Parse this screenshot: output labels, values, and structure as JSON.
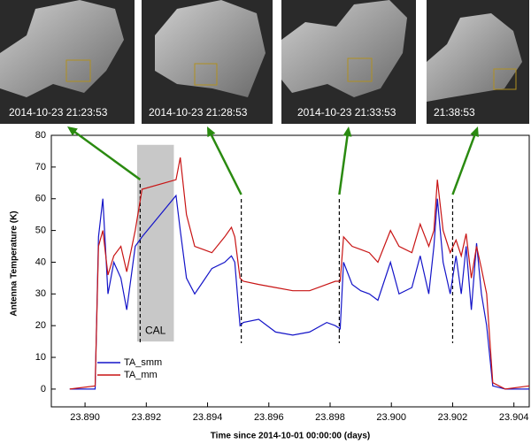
{
  "chart_data": {
    "type": "line",
    "xlabel": "Time since 2014-10-01 00:00:00 (days)",
    "ylabel": "Antenna Temperature (K)",
    "x": [
      23.8895,
      23.89033,
      23.89044,
      23.89058,
      23.89075,
      23.89094,
      23.89117,
      23.89136,
      23.89164,
      23.89186,
      23.89297,
      23.89311,
      23.89331,
      23.89358,
      23.89386,
      23.89414,
      23.89456,
      23.89478,
      23.89489,
      23.89506,
      23.89517,
      23.89567,
      23.89622,
      23.89678,
      23.89733,
      23.89789,
      23.89817,
      23.89833,
      23.89844,
      23.89872,
      23.899,
      23.89928,
      23.89956,
      23.89997,
      23.90025,
      23.90067,
      23.90094,
      23.90122,
      23.90139,
      23.9015,
      23.90169,
      23.90192,
      23.90211,
      23.90228,
      23.90244,
      23.90261,
      23.90278,
      23.90294,
      23.90311,
      23.90331,
      23.90372,
      23.9045
    ],
    "series": [
      {
        "name": "TA_smm",
        "color": "#1414c8",
        "values": [
          0,
          0,
          48,
          60,
          30,
          40,
          35,
          25,
          45,
          48,
          61,
          50,
          35,
          30,
          34,
          38,
          40,
          42,
          40,
          20,
          21,
          22,
          18,
          17,
          18,
          21,
          20,
          19,
          40,
          33,
          31,
          30,
          28,
          40,
          30,
          32,
          42,
          30,
          45,
          60,
          40,
          30,
          42,
          30,
          45,
          25,
          46,
          30,
          20,
          1,
          0,
          0
        ]
      },
      {
        "name": "TA_mm",
        "color": "#c81414",
        "values": [
          0,
          1,
          45,
          50,
          36,
          42,
          45,
          37,
          50,
          63,
          66,
          73,
          55,
          45,
          44,
          43,
          48,
          51,
          48,
          35,
          34,
          33,
          32,
          31,
          31,
          33,
          34,
          34,
          48,
          45,
          44,
          43,
          40,
          50,
          45,
          43,
          52,
          45,
          50,
          66,
          50,
          43,
          47,
          42,
          49,
          35,
          45,
          38,
          30,
          2,
          0,
          1
        ]
      }
    ],
    "xlim": [
      23.8889,
      23.9045
    ],
    "ylim": [
      -5.6,
      80
    ],
    "xticks": [
      {
        "value": 23.89,
        "label": "23.890"
      },
      {
        "value": 23.892,
        "label": "23.892"
      },
      {
        "value": 23.894,
        "label": "23.894"
      },
      {
        "value": 23.896,
        "label": "23.896"
      },
      {
        "value": 23.898,
        "label": "23.898"
      },
      {
        "value": 23.9,
        "label": "23.900"
      },
      {
        "value": 23.902,
        "label": "23.902"
      },
      {
        "value": 23.904,
        "label": "23.904"
      }
    ],
    "yticks": [
      0,
      10,
      20,
      30,
      40,
      50,
      60,
      70,
      80
    ],
    "legend": "lower left",
    "cal_band": {
      "label": "CAL",
      "x": [
        23.8917,
        23.8929
      ],
      "y": [
        15,
        77
      ],
      "color": "#c8c8c8"
    },
    "event_x": [
      23.8918,
      23.8951,
      23.8983,
      23.902
    ],
    "snapshots": [
      "2014-10-23  21:23:53",
      "2014-10-23  21:28:53",
      "2014-10-23  21:33:53",
      "21:38:53"
    ]
  }
}
